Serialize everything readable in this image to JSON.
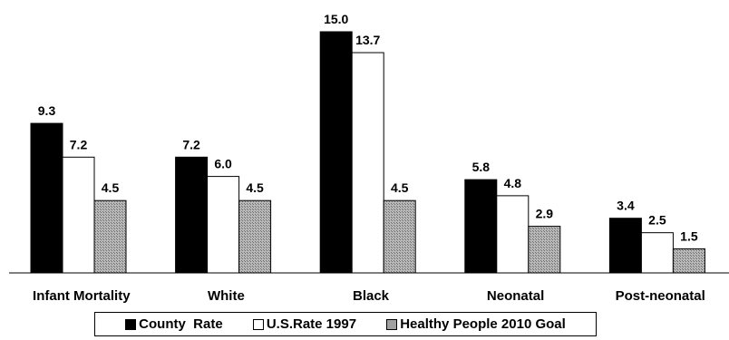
{
  "chart_data": {
    "type": "bar",
    "categories": [
      "Infant Mortality",
      "White",
      "Black",
      "Neonatal",
      "Post-neonatal"
    ],
    "series": [
      {
        "name": "County  Rate",
        "values": [
          9.3,
          7.2,
          15.0,
          5.8,
          3.4
        ],
        "color": "#000000"
      },
      {
        "name": "U.S.Rate 1997",
        "values": [
          7.2,
          6.0,
          13.7,
          4.8,
          2.5
        ],
        "color": "#ffffff"
      },
      {
        "name": "Healthy People 2010 Goal",
        "values": [
          4.5,
          4.5,
          4.5,
          2.9,
          1.5
        ],
        "color": "#a0a0a0"
      }
    ],
    "value_labels": [
      [
        "9.3",
        "7.2",
        "15.0",
        "5.8",
        "3.4"
      ],
      [
        "7.2",
        "6.0",
        "13.7",
        "4.8",
        "2.5"
      ],
      [
        "4.5",
        "4.5",
        "4.5",
        "2.9",
        "1.5"
      ]
    ],
    "ylim": [
      0,
      15
    ],
    "grid": false,
    "legend_position": "bottom",
    "title": "",
    "xlabel": "",
    "ylabel": ""
  }
}
